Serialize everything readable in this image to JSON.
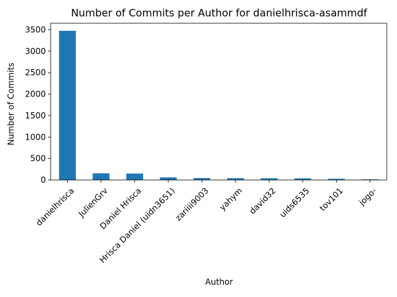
{
  "chart_data": {
    "type": "bar",
    "title": "Number of Commits per Author for danielhrisca-asammdf",
    "xlabel": "Author",
    "ylabel": "Number of Commits",
    "categories": [
      "danielhrisca",
      "JulienGrv",
      "Daniel Hrisca",
      "Hrisca Daniel (uidn3651)",
      "zariiii9003",
      "yahym",
      "david32",
      "uids6535",
      "tov101",
      "jogo-"
    ],
    "values": [
      3475,
      155,
      150,
      60,
      45,
      42,
      40,
      38,
      28,
      15
    ],
    "ylim": [
      0,
      3650
    ],
    "yticks": [
      0,
      500,
      1000,
      1500,
      2000,
      2500,
      3000,
      3500
    ],
    "bar_color": "#1f77b4",
    "grid": false,
    "legend": "none"
  }
}
